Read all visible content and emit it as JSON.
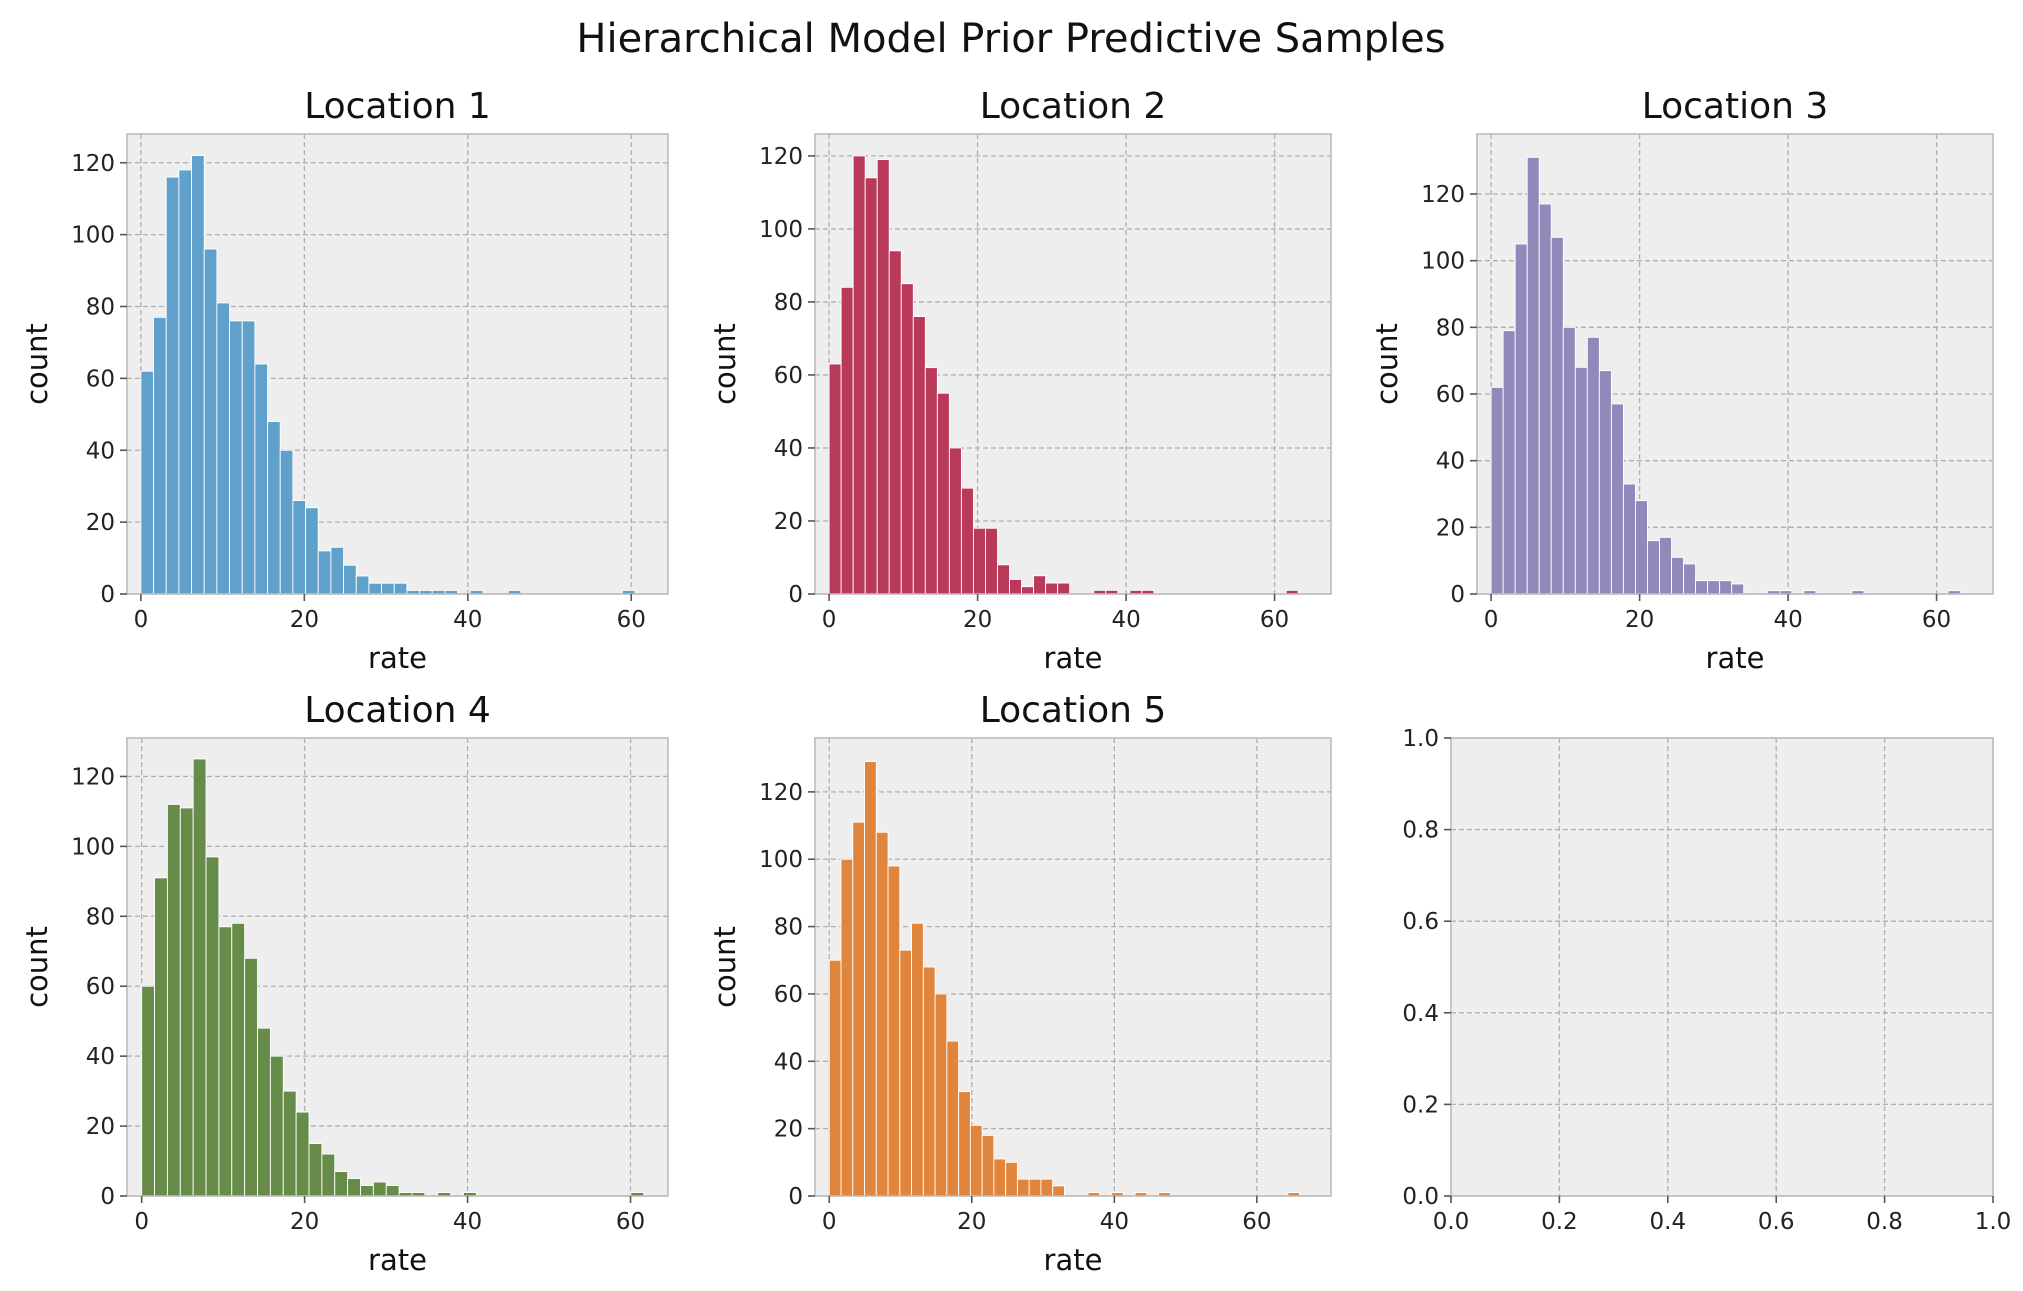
{
  "figure": {
    "suptitle": "Hierarchical Model Prior Predictive Samples"
  },
  "chart_data": [
    {
      "type": "bar",
      "title": "Location 1",
      "xlabel": "rate",
      "ylabel": "count",
      "color": "#5fa1ca",
      "bin_start": 0,
      "bin_width": 1.55,
      "values": [
        62,
        77,
        116,
        118,
        122,
        96,
        81,
        76,
        76,
        64,
        48,
        40,
        26,
        24,
        12,
        13,
        8,
        5,
        3,
        3,
        3,
        1,
        1,
        1,
        1,
        0,
        1,
        0,
        0,
        1,
        0,
        0,
        0,
        0,
        0,
        0,
        0,
        0,
        1
      ],
      "xlim": [
        -1.7,
        64.5
      ],
      "ylim": [
        0,
        128
      ],
      "xticks": [
        0,
        20,
        40,
        60
      ],
      "yticks": [
        0,
        20,
        40,
        60,
        80,
        100,
        120
      ],
      "grid": true
    },
    {
      "type": "bar",
      "title": "Location 2",
      "xlabel": "rate",
      "ylabel": "count",
      "color": "#b9395b",
      "bin_start": 0,
      "bin_width": 1.62,
      "values": [
        63,
        84,
        120,
        114,
        119,
        94,
        85,
        76,
        62,
        55,
        40,
        29,
        18,
        18,
        8,
        4,
        2,
        5,
        3,
        3,
        0,
        0,
        1,
        1,
        0,
        1,
        1,
        0,
        0,
        0,
        0,
        0,
        0,
        0,
        0,
        0,
        0,
        0,
        1
      ],
      "xlim": [
        -1.9,
        67.6
      ],
      "ylim": [
        0,
        126
      ],
      "xticks": [
        0,
        20,
        40,
        60
      ],
      "yticks": [
        0,
        20,
        40,
        60,
        80,
        100,
        120
      ],
      "grid": true
    },
    {
      "type": "bar",
      "title": "Location 3",
      "xlabel": "rate",
      "ylabel": "count",
      "color": "#9189ba",
      "bin_start": 0,
      "bin_width": 1.62,
      "values": [
        62,
        79,
        105,
        131,
        117,
        107,
        80,
        68,
        77,
        67,
        57,
        33,
        28,
        16,
        17,
        11,
        9,
        4,
        4,
        4,
        3,
        0,
        0,
        1,
        1,
        0,
        1,
        0,
        0,
        0,
        1,
        0,
        0,
        0,
        0,
        0,
        0,
        0,
        1
      ],
      "xlim": [
        -1.9,
        67.6
      ],
      "ylim": [
        0,
        138
      ],
      "xticks": [
        0,
        20,
        40,
        60
      ],
      "yticks": [
        0,
        20,
        40,
        60,
        80,
        100,
        120
      ],
      "grid": true
    },
    {
      "type": "bar",
      "title": "Location 4",
      "xlabel": "rate",
      "ylabel": "count",
      "color": "#678c49",
      "bin_start": 0,
      "bin_width": 1.58,
      "values": [
        60,
        91,
        112,
        111,
        125,
        97,
        77,
        78,
        68,
        48,
        40,
        30,
        24,
        15,
        12,
        7,
        5,
        3,
        4,
        3,
        1,
        1,
        0,
        1,
        0,
        1,
        0,
        0,
        0,
        0,
        0,
        0,
        0,
        0,
        0,
        0,
        0,
        0,
        1
      ],
      "xlim": [
        -1.8,
        64.6
      ],
      "ylim": [
        0,
        131
      ],
      "xticks": [
        0,
        20,
        40,
        60
      ],
      "yticks": [
        0,
        20,
        40,
        60,
        80,
        100,
        120
      ],
      "grid": true
    },
    {
      "type": "bar",
      "title": "Location 5",
      "xlabel": "rate",
      "ylabel": "count",
      "color": "#e0853b",
      "bin_start": 0,
      "bin_width": 1.65,
      "values": [
        70,
        100,
        111,
        129,
        108,
        98,
        73,
        81,
        68,
        60,
        46,
        31,
        21,
        18,
        11,
        10,
        5,
        5,
        5,
        3,
        0,
        0,
        1,
        0,
        1,
        0,
        1,
        0,
        1,
        0,
        0,
        0,
        0,
        0,
        0,
        0,
        0,
        0,
        0,
        1
      ],
      "xlim": [
        -2.0,
        70.4
      ],
      "ylim": [
        0,
        136
      ],
      "xticks": [
        0,
        20,
        40,
        60
      ],
      "yticks": [
        0,
        20,
        40,
        60,
        80,
        100,
        120
      ],
      "grid": true
    },
    {
      "type": "empty",
      "title": "",
      "xlabel": "",
      "ylabel": "",
      "xlim": [
        0,
        1
      ],
      "ylim": [
        0,
        1
      ],
      "xticks": [
        0.0,
        0.2,
        0.4,
        0.6,
        0.8,
        1.0
      ],
      "yticks": [
        0.0,
        0.2,
        0.4,
        0.6,
        0.8,
        1.0
      ],
      "tick_format": "0.0",
      "grid": true
    }
  ]
}
